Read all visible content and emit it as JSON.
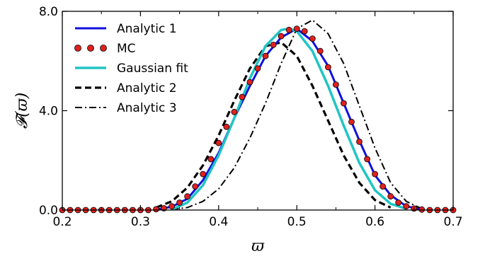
{
  "chart_data": {
    "type": "line",
    "xlabel": "ϖ",
    "ylabel": "𝓕(ϖ)",
    "xlim": [
      0.2,
      0.7
    ],
    "ylim": [
      0.0,
      8.0
    ],
    "xticks": [
      0.2,
      0.3,
      0.4,
      0.5,
      0.6,
      0.7
    ],
    "xtick_labels": [
      "0.2",
      "0.3",
      "0.4",
      "0.5",
      "0.6",
      "0.7"
    ],
    "yticks": [
      0.0,
      4.0,
      8.0
    ],
    "ytick_labels": [
      "0.0",
      "4.0",
      "8.0"
    ],
    "grid": false,
    "legend_position": "top-left",
    "series": [
      {
        "name": "Analytic 1",
        "style": "solid",
        "color": "#1010e0",
        "x": [
          0.32,
          0.34,
          0.36,
          0.38,
          0.4,
          0.42,
          0.44,
          0.46,
          0.48,
          0.5,
          0.52,
          0.54,
          0.56,
          0.58,
          0.6,
          0.62,
          0.64,
          0.66
        ],
        "y": [
          0.02,
          0.13,
          0.45,
          1.2,
          2.3,
          3.7,
          5.0,
          6.2,
          6.95,
          7.3,
          6.8,
          5.8,
          4.3,
          2.8,
          1.4,
          0.6,
          0.15,
          0.02
        ]
      },
      {
        "name": "MC",
        "style": "markers",
        "color": "#e02020",
        "x": [
          0.2,
          0.21,
          0.22,
          0.23,
          0.24,
          0.25,
          0.26,
          0.27,
          0.28,
          0.29,
          0.3,
          0.31,
          0.32,
          0.33,
          0.34,
          0.35,
          0.36,
          0.37,
          0.38,
          0.39,
          0.4,
          0.41,
          0.42,
          0.43,
          0.44,
          0.45,
          0.46,
          0.47,
          0.48,
          0.49,
          0.5,
          0.51,
          0.52,
          0.53,
          0.54,
          0.55,
          0.56,
          0.57,
          0.58,
          0.59,
          0.6,
          0.61,
          0.62,
          0.63,
          0.64,
          0.65,
          0.66,
          0.67,
          0.68,
          0.69,
          0.7
        ],
        "y": [
          0,
          0,
          0,
          0,
          0,
          0,
          0,
          0,
          0,
          0,
          0,
          0,
          0.03,
          0.07,
          0.15,
          0.3,
          0.55,
          0.95,
          1.45,
          2.05,
          2.7,
          3.35,
          3.95,
          4.55,
          5.15,
          5.7,
          6.2,
          6.65,
          7.0,
          7.25,
          7.3,
          7.2,
          6.9,
          6.4,
          5.75,
          5.05,
          4.3,
          3.55,
          2.75,
          2.05,
          1.45,
          0.95,
          0.55,
          0.3,
          0.15,
          0.06,
          0.02,
          0,
          0,
          0,
          0
        ]
      },
      {
        "name": "Gaussian fit",
        "style": "solid-thick",
        "color": "#20c4c4",
        "x": [
          0.34,
          0.36,
          0.38,
          0.4,
          0.42,
          0.44,
          0.46,
          0.48,
          0.49,
          0.5,
          0.52,
          0.54,
          0.56,
          0.58,
          0.6,
          0.62,
          0.64
        ],
        "y": [
          0.02,
          0.3,
          1.0,
          2.2,
          3.7,
          5.3,
          6.6,
          7.25,
          7.3,
          7.2,
          6.4,
          5.0,
          3.4,
          1.9,
          0.8,
          0.25,
          0.05
        ]
      },
      {
        "name": "Analytic 2",
        "style": "dashed",
        "color": "#000000",
        "x": [
          0.32,
          0.34,
          0.36,
          0.38,
          0.4,
          0.42,
          0.44,
          0.46,
          0.48,
          0.5,
          0.52,
          0.54,
          0.56,
          0.58,
          0.6,
          0.62
        ],
        "y": [
          0.1,
          0.35,
          0.9,
          1.8,
          3.0,
          4.4,
          5.7,
          6.6,
          6.75,
          6.2,
          5.0,
          3.6,
          2.2,
          1.1,
          0.4,
          0.1
        ]
      },
      {
        "name": "Analytic 3",
        "style": "dashdot",
        "color": "#000000",
        "x": [
          0.34,
          0.36,
          0.38,
          0.4,
          0.42,
          0.44,
          0.46,
          0.48,
          0.5,
          0.52,
          0.54,
          0.56,
          0.58,
          0.6,
          0.62,
          0.64,
          0.66
        ],
        "y": [
          0.02,
          0.1,
          0.35,
          0.85,
          1.7,
          2.9,
          4.3,
          5.9,
          7.3,
          7.65,
          7.1,
          5.9,
          4.2,
          2.5,
          1.1,
          0.35,
          0.05
        ]
      }
    ]
  }
}
